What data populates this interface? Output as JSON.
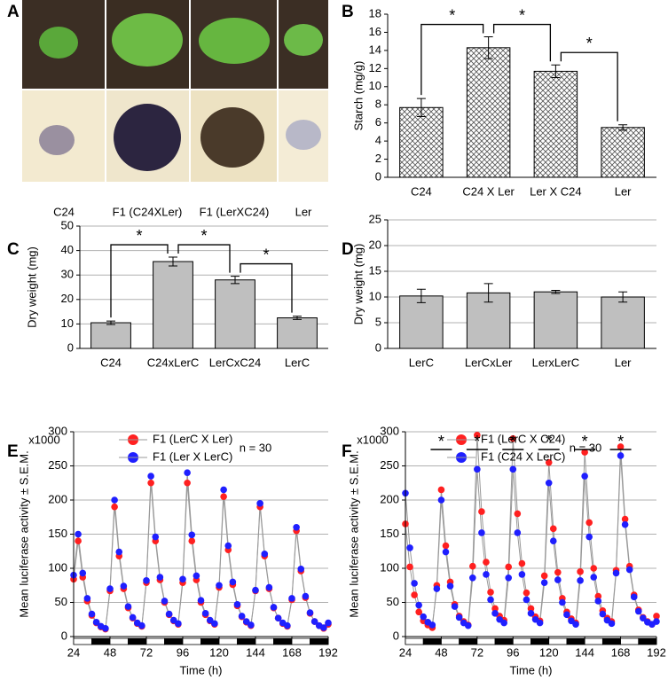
{
  "photo_panel": {
    "label": "A",
    "captions": [
      "C24",
      "F1 (C24XLer)",
      "F1 (LerXC24)",
      "Ler"
    ]
  },
  "chart_data": [
    {
      "label": "B",
      "type": "bar",
      "y_label": "Starch (mg/g)",
      "categories": [
        "C24",
        "C24 X Ler",
        "Ler X C24",
        "Ler"
      ],
      "values": [
        7.7,
        14.3,
        11.7,
        5.5
      ],
      "errors": [
        1.0,
        1.2,
        0.7,
        0.3
      ],
      "color": "#ffffff",
      "pattern": "crosshatch",
      "ylim": [
        0,
        18
      ],
      "yticks": [
        0,
        2,
        4,
        6,
        8,
        10,
        12,
        14,
        16,
        18
      ],
      "grid": false,
      "annotations": [
        "*",
        "*",
        "*"
      ]
    },
    {
      "label": "C",
      "type": "bar",
      "y_label": "Dry weight (mg)",
      "categories": [
        "C24",
        "C24xLerC",
        "LerCxC24",
        "LerC"
      ],
      "values": [
        10.5,
        35.5,
        28,
        12.5
      ],
      "errors": [
        0.7,
        1.8,
        1.5,
        0.7
      ],
      "color": "#bfbfbf",
      "ylim": [
        0,
        50
      ],
      "yticks": [
        0,
        10,
        20,
        30,
        40,
        50
      ],
      "grid": true,
      "annotations": [
        "*",
        "*",
        "*"
      ]
    },
    {
      "label": "D",
      "type": "bar",
      "y_label": "Dry weight (mg)",
      "categories": [
        "LerC",
        "LerCxLer",
        "LerxLerC",
        "Ler"
      ],
      "values": [
        10.2,
        10.8,
        11,
        10
      ],
      "errors": [
        1.3,
        1.8,
        0.3,
        1.0
      ],
      "color": "#bfbfbf",
      "ylim": [
        0,
        25
      ],
      "yticks": [
        0,
        5,
        10,
        15,
        20,
        25
      ],
      "grid": true
    },
    {
      "label": "E",
      "type": "line",
      "y_label": "Mean luciferase activity ± S.E.M.",
      "x_label": "Time (h)",
      "y_multiplier": "x1000",
      "note": "n = 30",
      "x": [
        24,
        27,
        30,
        33,
        36,
        39,
        42,
        45,
        48,
        51,
        54,
        57,
        60,
        63,
        66,
        69,
        72,
        75,
        78,
        81,
        84,
        87,
        90,
        93,
        96,
        99,
        102,
        105,
        108,
        111,
        114,
        117,
        120,
        123,
        126,
        129,
        132,
        135,
        138,
        141,
        144,
        147,
        150,
        153,
        156,
        159,
        162,
        165,
        168,
        171,
        174,
        177,
        180,
        183,
        186,
        189,
        192
      ],
      "series": [
        {
          "name": "F1 (LerC X Ler)",
          "color": "#ff2020",
          "values": [
            84,
            140,
            87,
            52,
            31,
            20,
            14,
            11,
            67,
            190,
            118,
            70,
            42,
            27,
            19,
            15,
            79,
            225,
            140,
            83,
            50,
            32,
            23,
            18,
            79,
            225,
            140,
            83,
            50,
            32,
            23,
            18,
            72,
            205,
            127,
            76,
            45,
            29,
            21,
            16,
            67,
            190,
            118,
            70,
            42,
            27,
            19,
            15,
            54,
            155,
            96,
            57,
            34,
            22,
            16,
            12,
            18
          ]
        },
        {
          "name": "F1 (Ler X LerC)",
          "color": "#1f1fff",
          "values": [
            90,
            150,
            93,
            56,
            33,
            21,
            15,
            12,
            70,
            200,
            124,
            74,
            44,
            28,
            20,
            16,
            82,
            235,
            146,
            87,
            52,
            33,
            24,
            19,
            84,
            240,
            149,
            89,
            53,
            34,
            24,
            19,
            75,
            215,
            133,
            80,
            47,
            30,
            22,
            17,
            68,
            195,
            121,
            72,
            43,
            27,
            20,
            16,
            56,
            160,
            99,
            59,
            35,
            22,
            16,
            13,
            20
          ]
        }
      ],
      "xlim": [
        24,
        192
      ],
      "xticks": [
        24,
        48,
        72,
        96,
        120,
        144,
        168,
        192
      ],
      "ylim": [
        0,
        300
      ],
      "yticks": [
        0,
        50,
        100,
        150,
        200,
        250,
        300
      ],
      "grid": true
    },
    {
      "label": "F",
      "type": "line",
      "y_label": "Mean luciferase activity ± S.E.M.",
      "x_label": "Time (h)",
      "y_multiplier": "x1000",
      "note": "n = 30",
      "x": [
        24,
        27,
        30,
        33,
        36,
        39,
        42,
        45,
        48,
        51,
        54,
        57,
        60,
        63,
        66,
        69,
        72,
        75,
        78,
        81,
        84,
        87,
        90,
        93,
        96,
        99,
        102,
        105,
        108,
        111,
        114,
        117,
        120,
        123,
        126,
        129,
        132,
        135,
        138,
        141,
        144,
        147,
        150,
        153,
        156,
        159,
        162,
        165,
        168,
        171,
        174,
        177,
        180,
        183,
        186,
        189,
        192
      ],
      "series": [
        {
          "name": "F1 (LerC X C24)",
          "color": "#ff2020",
          "values": [
            165,
            102,
            61,
            36,
            23,
            17,
            13,
            75,
            215,
            133,
            80,
            47,
            30,
            22,
            17,
            103,
            295,
            183,
            109,
            65,
            41,
            30,
            24,
            102,
            290,
            180,
            107,
            64,
            41,
            29,
            23,
            89,
            255,
            158,
            94,
            56,
            36,
            26,
            20,
            95,
            270,
            167,
            100,
            59,
            38,
            27,
            22,
            97,
            278,
            172,
            103,
            61,
            39,
            28,
            22,
            18,
            30
          ]
        },
        {
          "name": "F1 (C24 X LerC)",
          "color": "#1f1fff",
          "values": [
            210,
            130,
            78,
            46,
            29,
            21,
            17,
            70,
            200,
            124,
            74,
            44,
            28,
            20,
            16,
            86,
            245,
            152,
            91,
            54,
            34,
            25,
            20,
            86,
            245,
            152,
            91,
            54,
            34,
            25,
            20,
            79,
            225,
            140,
            83,
            50,
            32,
            23,
            18,
            82,
            235,
            146,
            87,
            52,
            33,
            24,
            19,
            93,
            265,
            164,
            98,
            58,
            37,
            27,
            21,
            18,
            22
          ]
        }
      ],
      "xlim": [
        24,
        192
      ],
      "xticks": [
        24,
        48,
        72,
        96,
        120,
        144,
        168,
        192
      ],
      "ylim": [
        0,
        300
      ],
      "yticks": [
        0,
        50,
        100,
        150,
        200,
        250,
        300
      ],
      "grid": true,
      "annotations": [
        "*",
        "*",
        "*",
        "*",
        "*",
        "*"
      ]
    }
  ]
}
